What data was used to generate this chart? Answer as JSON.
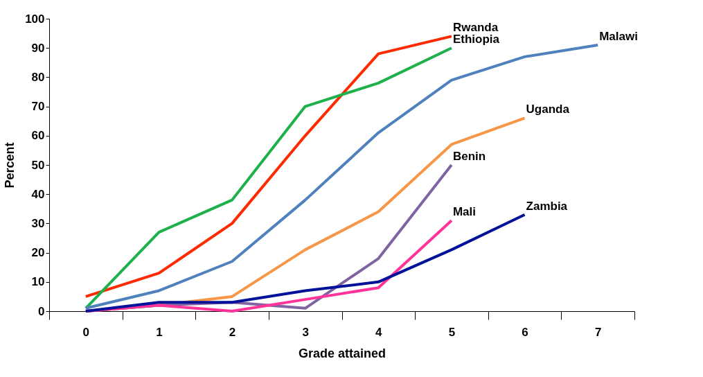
{
  "chart_data": {
    "type": "line",
    "xlabel": "Grade attained",
    "ylabel": "Percent",
    "categories": [
      "0",
      "1",
      "2",
      "3",
      "4",
      "5",
      "6",
      "7"
    ],
    "ylim": [
      0,
      100
    ],
    "yticks": [
      0,
      10,
      20,
      30,
      40,
      50,
      60,
      70,
      80,
      90,
      100
    ],
    "series": [
      {
        "name": "Rwanda",
        "color": "#ff2a00",
        "values": [
          5,
          13,
          30,
          60,
          88,
          94,
          null,
          null
        ]
      },
      {
        "name": "Ethiopia",
        "color": "#1db04b",
        "values": [
          1,
          27,
          38,
          70,
          78,
          90,
          null,
          null
        ]
      },
      {
        "name": "Malawi",
        "color": "#4f81bd",
        "values": [
          1,
          7,
          17,
          38,
          61,
          79,
          87,
          91
        ]
      },
      {
        "name": "Uganda",
        "color": "#f79646",
        "values": [
          0,
          2,
          5,
          21,
          34,
          57,
          66,
          null
        ]
      },
      {
        "name": "Benin",
        "color": "#8064a2",
        "values": [
          0,
          2,
          3,
          1,
          18,
          50,
          null,
          null
        ]
      },
      {
        "name": "Mali",
        "color": "#ff3399",
        "values": [
          0,
          2,
          0,
          4,
          8,
          31,
          null,
          null
        ]
      },
      {
        "name": "Zambia",
        "color": "#00129a",
        "values": [
          0,
          3,
          3,
          7,
          10,
          21,
          33,
          null
        ]
      }
    ]
  }
}
